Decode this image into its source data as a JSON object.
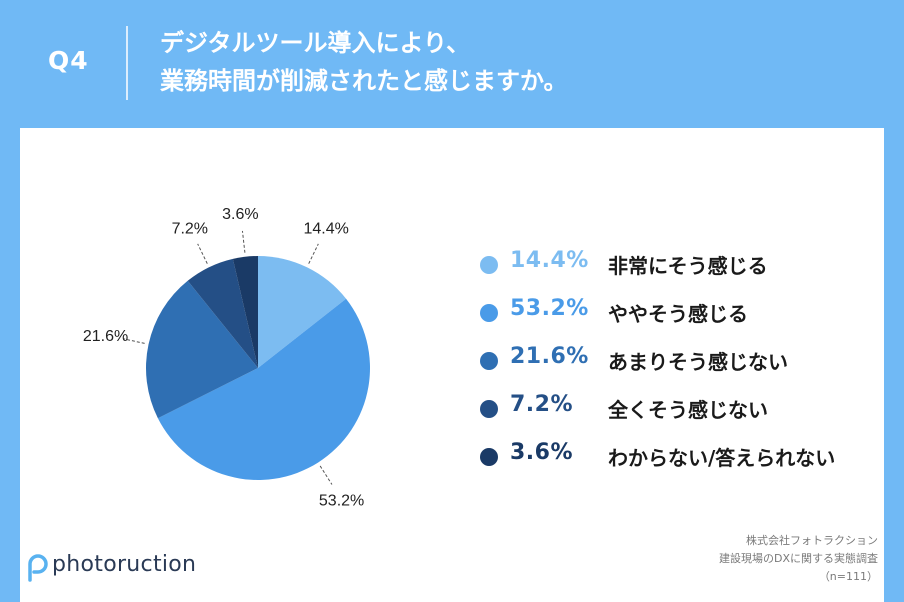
{
  "header": {
    "qnum": "Q4",
    "title_line1": "デジタルツール導入により、",
    "title_line2": "業務時間が削減されたと感じますか。"
  },
  "colors": {
    "frame": "#70b9f5",
    "series": [
      "#7cbcf1",
      "#4a9be8",
      "#2f6fb3",
      "#244f86",
      "#1a3a66"
    ]
  },
  "chart_data": {
    "type": "pie",
    "categories": [
      "非常にそう感じる",
      "ややそう感じる",
      "あまりそう感じない",
      "全くそう感じない",
      "わからない/答えられない"
    ],
    "values": [
      14.4,
      53.2,
      21.6,
      7.2,
      3.6
    ],
    "value_labels": [
      "14.4%",
      "53.2%",
      "21.6%",
      "7.2%",
      "3.6%"
    ],
    "legend_position": "right"
  },
  "brand": {
    "name": "photoruction",
    "icon": "photoruction-logo-icon"
  },
  "source": {
    "line1": "株式会社フォトラクション",
    "line2": "建設現場のDXに関する実態調査",
    "line3": "（n=111）"
  }
}
